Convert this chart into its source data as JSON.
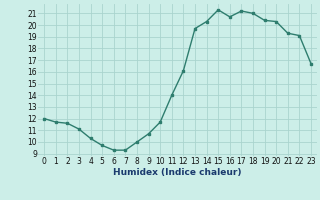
{
  "x": [
    0,
    1,
    2,
    3,
    4,
    5,
    6,
    7,
    8,
    9,
    10,
    11,
    12,
    13,
    14,
    15,
    16,
    17,
    18,
    19,
    20,
    21,
    22,
    23
  ],
  "y": [
    12,
    11.7,
    11.6,
    11.1,
    10.3,
    9.7,
    9.3,
    9.3,
    10.0,
    10.7,
    11.7,
    14.0,
    16.1,
    19.7,
    20.3,
    21.3,
    20.7,
    21.2,
    21.0,
    20.4,
    20.3,
    19.3,
    19.1,
    16.7
  ],
  "xlabel": "Humidex (Indice chaleur)",
  "line_color": "#2e7d6e",
  "bg_color": "#cceee8",
  "grid_color": "#aad4ce",
  "ylim": [
    8.8,
    21.8
  ],
  "xlim": [
    -0.5,
    23.5
  ],
  "yticks": [
    9,
    10,
    11,
    12,
    13,
    14,
    15,
    16,
    17,
    18,
    19,
    20,
    21
  ],
  "xticks": [
    0,
    1,
    2,
    3,
    4,
    5,
    6,
    7,
    8,
    9,
    10,
    11,
    12,
    13,
    14,
    15,
    16,
    17,
    18,
    19,
    20,
    21,
    22,
    23
  ],
  "xlabel_color": "#1a3a6e",
  "tick_fontsize": 5.5,
  "xlabel_fontsize": 6.5
}
